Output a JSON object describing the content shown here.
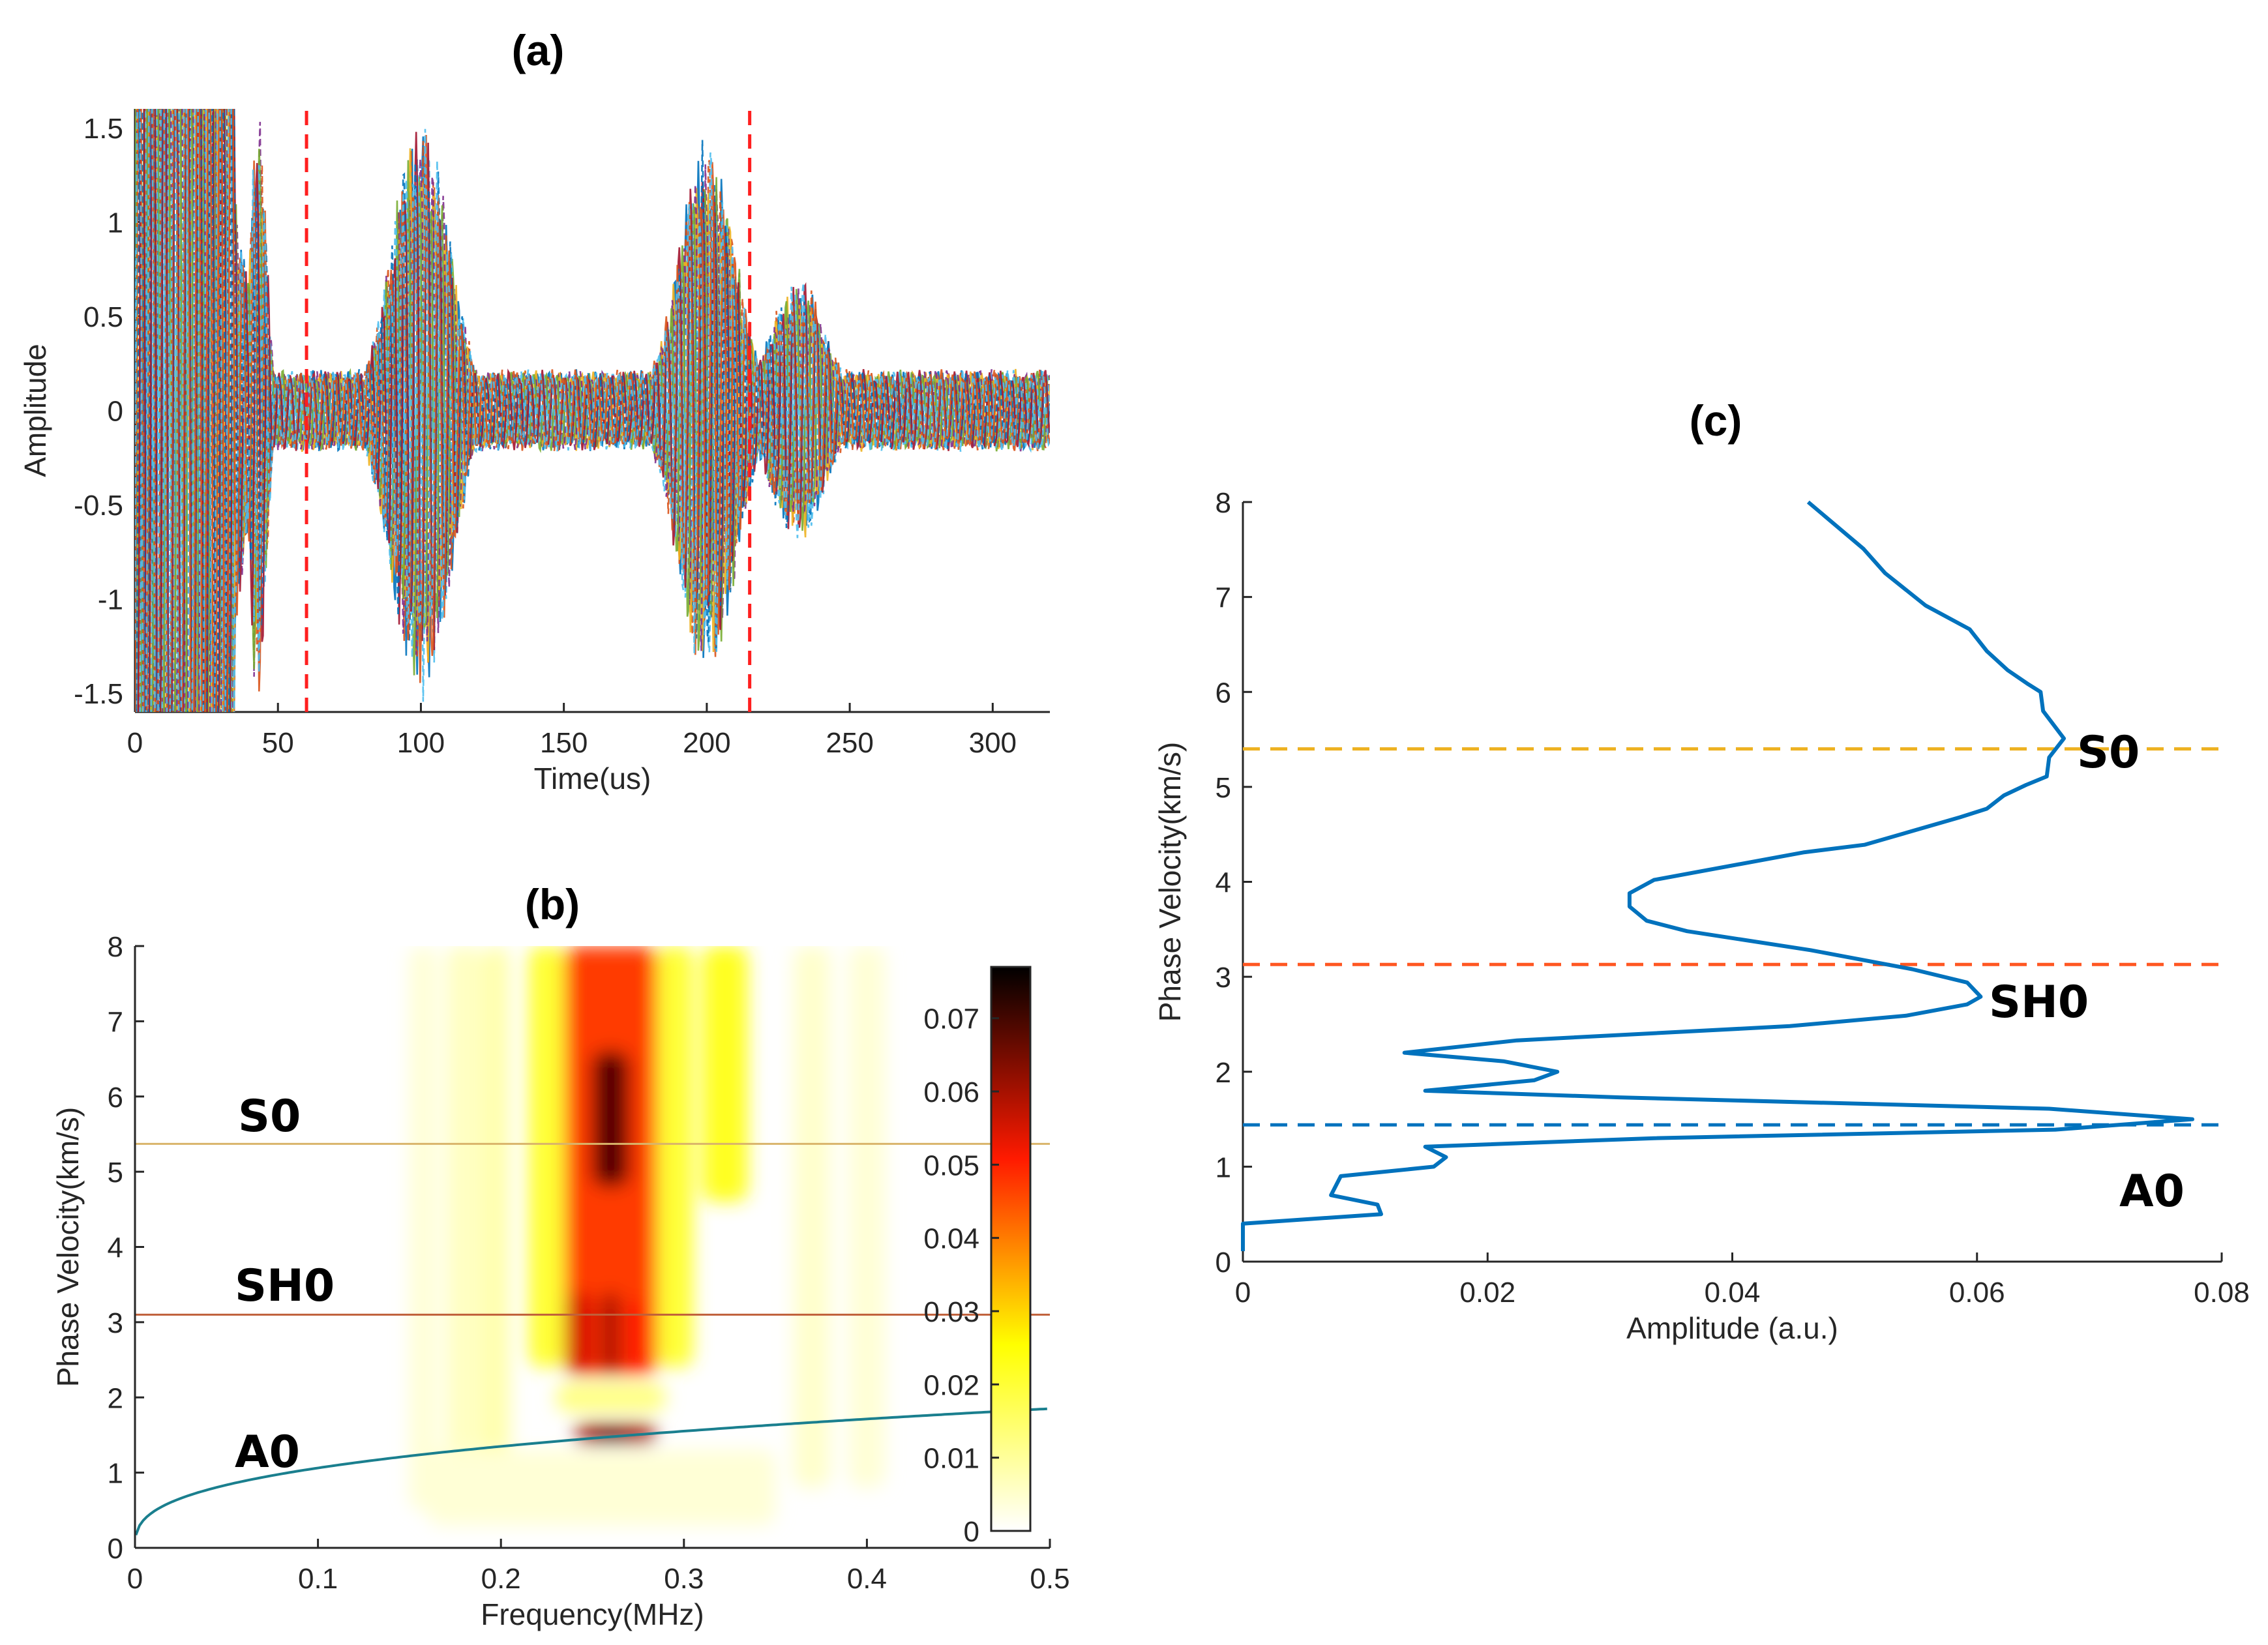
{
  "chart_data": [
    {
      "id": "a",
      "type": "line",
      "title": "(a)",
      "xlabel": "Time(us)",
      "ylabel": "Amplitude",
      "xlim": [
        0,
        320
      ],
      "ylim": [
        -1.6,
        1.6
      ],
      "xticks": [
        0,
        50,
        100,
        150,
        200,
        250,
        300
      ],
      "yticks": [
        -1.5,
        -1,
        -0.5,
        0,
        0.5,
        1,
        1.5
      ],
      "series_count": 10,
      "series_colors": [
        "#0072BD",
        "#D95319",
        "#EDB120",
        "#7E2F8E",
        "#77AC30",
        "#4DBEEE",
        "#A2142F",
        "#0072BD",
        "#D95319",
        "#4DBEEE"
      ],
      "wave_packets": [
        {
          "center_us": 17,
          "width_us": 18,
          "peak_amplitude": 3.0
        },
        {
          "center_us": 43,
          "width_us": 4,
          "peak_amplitude": 1.45
        },
        {
          "center_us": 100,
          "width_us": 14,
          "peak_amplitude": 1.45
        },
        {
          "center_us": 200,
          "width_us": 14,
          "peak_amplitude": 1.35
        },
        {
          "center_us": 232,
          "width_us": 14,
          "peak_amplitude": 0.65
        }
      ],
      "noise_amplitude": 0.2,
      "period_us": 4,
      "markers": [
        {
          "x": 60,
          "color": "#FF1F1F",
          "style": "dashed"
        },
        {
          "x": 215,
          "color": "#FF1F1F",
          "style": "dashed"
        }
      ]
    },
    {
      "id": "b",
      "type": "heatmap",
      "title": "(b)",
      "xlabel": "Frequency(MHz)",
      "ylabel": "Phase Velocity(km/s)",
      "xlim": [
        0,
        0.5
      ],
      "ylim": [
        0,
        8
      ],
      "xticks": [
        0,
        0.1,
        0.2,
        0.3,
        0.4,
        0.5
      ],
      "yticks": [
        0,
        1,
        2,
        3,
        4,
        5,
        6,
        7,
        8
      ],
      "colorbar": {
        "min": 0,
        "max": 0.077,
        "ticks": [
          0,
          0.01,
          0.02,
          0.03,
          0.04,
          0.05,
          0.06,
          0.07
        ],
        "colormap": "hot-reversed"
      },
      "regions": [
        {
          "f": [
            0.15,
            0.165
          ],
          "v": [
            0.5,
            8
          ],
          "value": 0.004
        },
        {
          "f": [
            0.17,
            0.19
          ],
          "v": [
            0.8,
            8
          ],
          "value": 0.006
        },
        {
          "f": [
            0.19,
            0.205
          ],
          "v": [
            0.8,
            8
          ],
          "value": 0.008
        },
        {
          "f": [
            0.36,
            0.38
          ],
          "v": [
            0.8,
            8
          ],
          "value": 0.005
        },
        {
          "f": [
            0.39,
            0.41
          ],
          "v": [
            0.8,
            8
          ],
          "value": 0.004
        },
        {
          "f": [
            0.215,
            0.235
          ],
          "v": [
            2.4,
            8
          ],
          "value": 0.02
        },
        {
          "f": [
            0.285,
            0.305
          ],
          "v": [
            2.4,
            8
          ],
          "value": 0.02
        },
        {
          "f": [
            0.31,
            0.335
          ],
          "v": [
            4.6,
            8
          ],
          "value": 0.022
        },
        {
          "f": [
            0.235,
            0.285
          ],
          "v": [
            2.3,
            8
          ],
          "value": 0.045
        },
        {
          "f": [
            0.25,
            0.27
          ],
          "v": [
            4.8,
            6.6
          ],
          "value": 0.068
        },
        {
          "f": [
            0.235,
            0.25
          ],
          "v": [
            2.3,
            3.4
          ],
          "value": 0.055
        },
        {
          "f": [
            0.255,
            0.265
          ],
          "v": [
            2.3,
            3.4
          ],
          "value": 0.06
        },
        {
          "f": [
            0.27,
            0.28
          ],
          "v": [
            2.3,
            3.3
          ],
          "value": 0.05
        },
        {
          "f": [
            0.23,
            0.29
          ],
          "v": [
            1.8,
            2.2
          ],
          "value": 0.012
        },
        {
          "f": [
            0.24,
            0.285
          ],
          "v": [
            1.38,
            1.65
          ],
          "value": 0.06
        },
        {
          "f": [
            0.25,
            0.27
          ],
          "v": [
            1.42,
            1.56
          ],
          "value": 0.077
        },
        {
          "f": [
            0.16,
            0.35
          ],
          "v": [
            0.3,
            1.3
          ],
          "value": 0.004
        }
      ],
      "mode_lines": [
        {
          "label": "S0",
          "velocity": 5.37,
          "color": "#D9B46A"
        },
        {
          "label": "SH0",
          "velocity": 3.1,
          "color": "#C0603A"
        }
      ],
      "dispersion_curve": {
        "label": "A0",
        "color": "#1A7F8E",
        "model": "v = 2.35 * f^0.345"
      }
    },
    {
      "id": "c",
      "type": "line",
      "title": "(c)",
      "xlabel": "Amplitude (a.u.)",
      "ylabel": "Phase Velocity(km/s)",
      "xlim": [
        0,
        0.08
      ],
      "ylim": [
        0,
        8
      ],
      "xticks": [
        0,
        0.02,
        0.04,
        0.06,
        0.08
      ],
      "yticks": [
        0,
        1,
        2,
        3,
        4,
        5,
        6,
        7,
        8
      ],
      "series": [
        {
          "name": "amplitude",
          "color": "#0072BD",
          "amplitude": [
            0.0462,
            0.0507,
            0.0525,
            0.0558,
            0.0594,
            0.0608,
            0.0625,
            0.0642,
            0.0652,
            0.0654,
            0.0671,
            0.0659,
            0.0657,
            0.064,
            0.0622,
            0.0608,
            0.0586,
            0.0508,
            0.0458,
            0.0336,
            0.0316,
            0.0316,
            0.033,
            0.0363,
            0.0464,
            0.0547,
            0.0592,
            0.0603,
            0.0592,
            0.0542,
            0.0447,
            0.0224,
            0.0132,
            0.0213,
            0.0257,
            0.0238,
            0.0149,
            0.0308,
            0.0659,
            0.0776,
            0.0664,
            0.0336,
            0.0149,
            0.0166,
            0.0156,
            0.008,
            0.0072,
            0.011,
            0.0113,
            0,
            0
          ],
          "velocity": [
            8.0,
            7.51,
            7.25,
            6.91,
            6.66,
            6.43,
            6.23,
            6.08,
            6.0,
            5.8,
            5.51,
            5.31,
            5.11,
            5.02,
            4.91,
            4.77,
            4.68,
            4.39,
            4.31,
            4.02,
            3.88,
            3.74,
            3.59,
            3.48,
            3.28,
            3.08,
            2.94,
            2.79,
            2.71,
            2.59,
            2.48,
            2.33,
            2.2,
            2.11,
            2.0,
            1.91,
            1.8,
            1.73,
            1.61,
            1.5,
            1.39,
            1.3,
            1.21,
            1.1,
            1.0,
            0.9,
            0.7,
            0.6,
            0.5,
            0.4,
            0.11
          ]
        }
      ],
      "mode_lines": [
        {
          "label": "S0",
          "velocity": 5.4,
          "color": "#EDB120"
        },
        {
          "label": "SH0",
          "velocity": 3.13,
          "color": "#FF5722"
        },
        {
          "label": "A0",
          "velocity": 1.44,
          "color": "#0072BD"
        }
      ]
    }
  ]
}
